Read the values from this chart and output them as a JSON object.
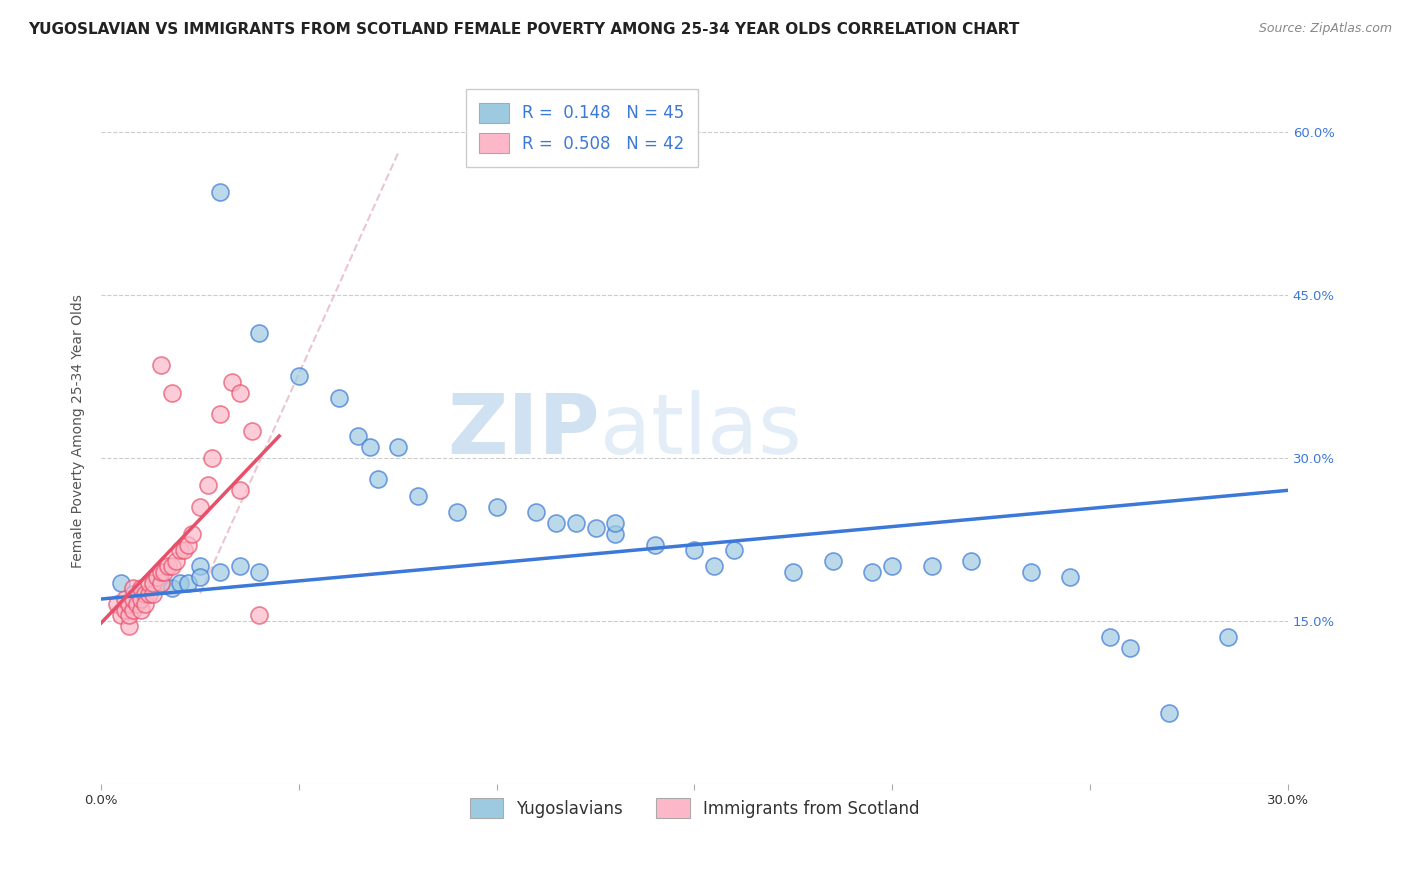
{
  "title": "YUGOSLAVIAN VS IMMIGRANTS FROM SCOTLAND FEMALE POVERTY AMONG 25-34 YEAR OLDS CORRELATION CHART",
  "source": "Source: ZipAtlas.com",
  "ylabel": "Female Poverty Among 25-34 Year Olds",
  "legend_label_1": "Yugoslavians",
  "legend_label_2": "Immigrants from Scotland",
  "r1": 0.148,
  "n1": 45,
  "r2": 0.508,
  "n2": 42,
  "xlim": [
    0.0,
    0.3
  ],
  "ylim": [
    0.0,
    0.65
  ],
  "xtick_positions": [
    0.0,
    0.05,
    0.1,
    0.15,
    0.2,
    0.25,
    0.3
  ],
  "xtick_labels": [
    "0.0%",
    "",
    "",
    "",
    "",
    "",
    "30.0%"
  ],
  "ytick_positions": [
    0.0,
    0.15,
    0.3,
    0.45,
    0.6
  ],
  "ytick_labels_right": [
    "",
    "15.0%",
    "30.0%",
    "45.0%",
    "60.0%"
  ],
  "color_blue": "#9ecae1",
  "color_pink": "#fcb8c8",
  "color_blue_line": "#3c78d8",
  "color_pink_line": "#e8506a",
  "color_dashed": "#e8c0c8",
  "watermark_zip": "ZIP",
  "watermark_atlas": "atlas",
  "blue_points_x": [
    0.03,
    0.04,
    0.05,
    0.06,
    0.065,
    0.068,
    0.07,
    0.075,
    0.08,
    0.09,
    0.1,
    0.11,
    0.115,
    0.12,
    0.125,
    0.13,
    0.13,
    0.14,
    0.005,
    0.008,
    0.012,
    0.015,
    0.018,
    0.02,
    0.022,
    0.025,
    0.025,
    0.03,
    0.035,
    0.04,
    0.15,
    0.155,
    0.16,
    0.175,
    0.185,
    0.195,
    0.2,
    0.21,
    0.22,
    0.235,
    0.245,
    0.255,
    0.26,
    0.27,
    0.285
  ],
  "blue_points_y": [
    0.545,
    0.415,
    0.375,
    0.355,
    0.32,
    0.31,
    0.28,
    0.31,
    0.265,
    0.25,
    0.255,
    0.25,
    0.24,
    0.24,
    0.235,
    0.23,
    0.24,
    0.22,
    0.185,
    0.175,
    0.185,
    0.185,
    0.18,
    0.185,
    0.185,
    0.2,
    0.19,
    0.195,
    0.2,
    0.195,
    0.215,
    0.2,
    0.215,
    0.195,
    0.205,
    0.195,
    0.2,
    0.2,
    0.205,
    0.195,
    0.19,
    0.135,
    0.125,
    0.065,
    0.135
  ],
  "pink_points_x": [
    0.004,
    0.005,
    0.006,
    0.006,
    0.007,
    0.007,
    0.007,
    0.008,
    0.008,
    0.008,
    0.009,
    0.01,
    0.01,
    0.01,
    0.011,
    0.011,
    0.012,
    0.012,
    0.013,
    0.013,
    0.014,
    0.015,
    0.015,
    0.016,
    0.017,
    0.018,
    0.019,
    0.02,
    0.021,
    0.022,
    0.023,
    0.025,
    0.027,
    0.028,
    0.03,
    0.033,
    0.035,
    0.038,
    0.015,
    0.018,
    0.035,
    0.04
  ],
  "pink_points_y": [
    0.165,
    0.155,
    0.16,
    0.17,
    0.145,
    0.155,
    0.165,
    0.16,
    0.17,
    0.18,
    0.165,
    0.16,
    0.17,
    0.18,
    0.175,
    0.165,
    0.175,
    0.185,
    0.175,
    0.185,
    0.19,
    0.185,
    0.195,
    0.195,
    0.2,
    0.2,
    0.205,
    0.215,
    0.215,
    0.22,
    0.23,
    0.255,
    0.275,
    0.3,
    0.34,
    0.37,
    0.36,
    0.325,
    0.385,
    0.36,
    0.27,
    0.155
  ],
  "blue_line_x": [
    0.0,
    0.3
  ],
  "blue_line_y": [
    0.17,
    0.27
  ],
  "pink_line_x": [
    0.0,
    0.045
  ],
  "pink_line_y": [
    0.148,
    0.32
  ],
  "dashed_line_x": [
    0.025,
    0.075
  ],
  "dashed_line_y": [
    0.175,
    0.58
  ],
  "title_fontsize": 11,
  "axis_fontsize": 10,
  "tick_fontsize": 9.5,
  "legend_fontsize": 12,
  "source_fontsize": 9
}
